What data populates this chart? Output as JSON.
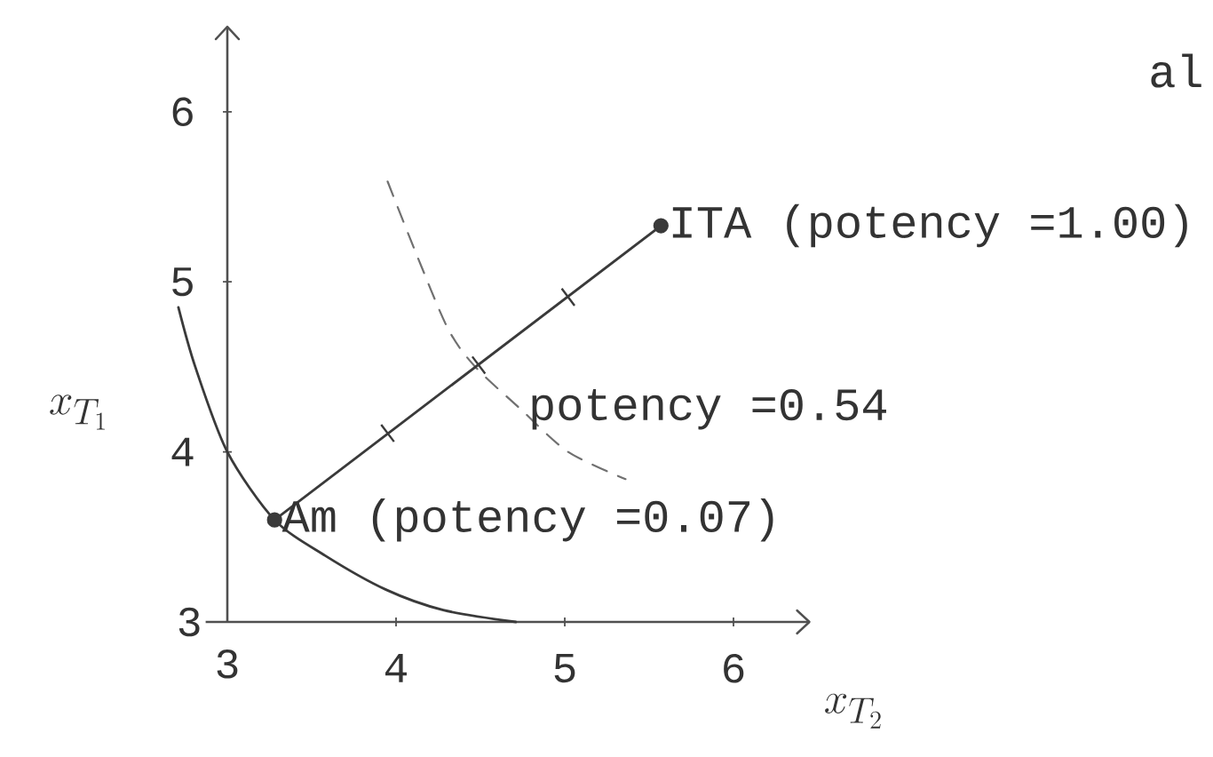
{
  "chart_data": {
    "type": "line",
    "xlabel": "x_{T_2}",
    "ylabel": "x_{T_1}",
    "xlim": [
      2.7,
      6.45
    ],
    "ylim": [
      3,
      6.5
    ],
    "xticks": [
      3,
      4,
      5,
      6
    ],
    "yticks": [
      3,
      4,
      5,
      6
    ],
    "series": [
      {
        "color": "#3a3a3a",
        "line_style": "solid",
        "marker": "none",
        "x": [
          2.71,
          2.81,
          3.0,
          3.28,
          3.58,
          3.94,
          4.28,
          4.71
        ],
        "values": [
          4.85,
          4.5,
          4.0,
          3.6,
          3.39,
          3.19,
          3.07,
          3.0
        ]
      },
      {
        "color": "#707070",
        "line_style": "dashed",
        "marker": "none",
        "x": [
          3.95,
          4.13,
          4.31,
          4.47,
          4.74,
          5.02,
          5.36
        ],
        "values": [
          5.59,
          5.14,
          4.72,
          4.5,
          4.25,
          4.0,
          3.84
        ]
      },
      {
        "color": "#3a3a3a",
        "line_style": "solid",
        "marker": "circle",
        "x": [
          3.28,
          5.57
        ],
        "values": [
          3.6,
          5.33
        ]
      },
      {
        "type": "scatter",
        "color": "#3a3a3a",
        "x": [
          3.95,
          4.49,
          5.02
        ],
        "values": [
          4.11,
          4.51,
          4.91
        ]
      }
    ],
    "annotations": [
      {
        "text": "ITA (potency =1.00)",
        "x": 5.57,
        "y": 5.33
      },
      {
        "text": "potency =0.54",
        "x": 4.74,
        "y": 4.25
      },
      {
        "text": "Am (potency =0.07)",
        "x": 3.28,
        "y": 3.6
      },
      "al"
    ]
  }
}
